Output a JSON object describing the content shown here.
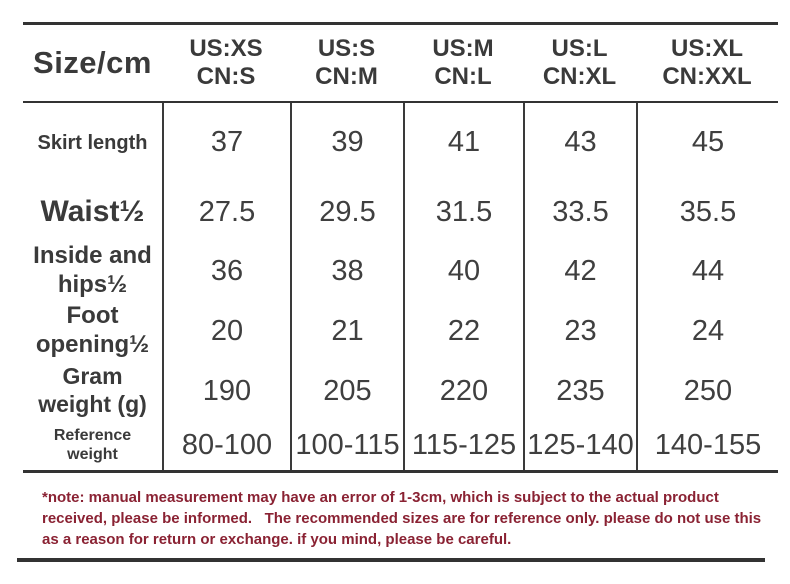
{
  "table": {
    "header": {
      "corner_label": "Size/cm",
      "columns": [
        {
          "us": "US:XS",
          "cn": "CN:S"
        },
        {
          "us": "US:S",
          "cn": "CN:M"
        },
        {
          "us": "US:M",
          "cn": "CN:L"
        },
        {
          "us": "US:L",
          "cn": "CN:XL"
        },
        {
          "us": "US:XL",
          "cn": "CN:XXL"
        }
      ]
    },
    "rows": [
      {
        "label": "Skirt length",
        "values": [
          "37",
          "39",
          "41",
          "43",
          "45"
        ]
      },
      {
        "label": "Waist½",
        "values": [
          "27.5",
          "29.5",
          "31.5",
          "33.5",
          "35.5"
        ]
      },
      {
        "label": "Inside and hips½",
        "values": [
          "36",
          "38",
          "40",
          "42",
          "44"
        ]
      },
      {
        "label": "Foot opening½",
        "values": [
          "20",
          "21",
          "22",
          "23",
          "24"
        ]
      },
      {
        "label": "Gram weight (g)",
        "values": [
          "190",
          "205",
          "220",
          "235",
          "250"
        ]
      },
      {
        "label": "Reference weight",
        "values": [
          "80-100",
          "100-115",
          "115-125",
          "125-140",
          "140-155"
        ]
      }
    ]
  },
  "note": {
    "text": "*note: manual measurement may have an error of 1-3cm, which is subject to the actual product received, please be informed.   The recommended sizes are for reference only. please do not use this as a reason for return or exchange. if you mind, please be careful."
  },
  "colors": {
    "text": "#3a3a3a",
    "rule": "#333333",
    "note_text": "#8a2233",
    "background": "#ffffff"
  }
}
